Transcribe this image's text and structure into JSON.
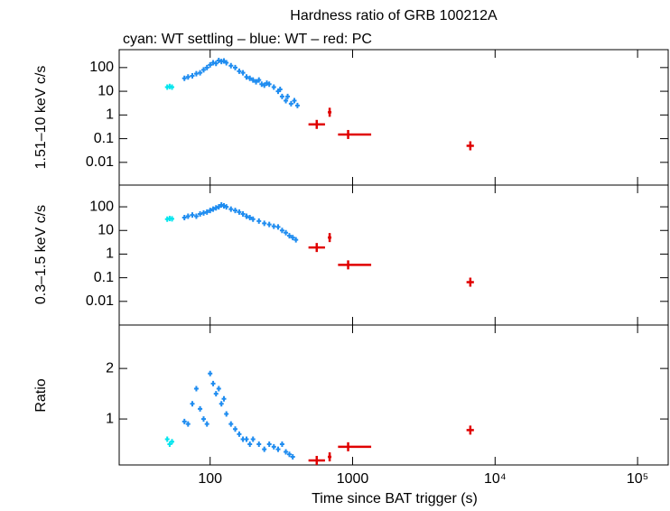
{
  "chart_data": [
    {
      "type": "scatter",
      "title": "Hardness ratio of GRB 100212A",
      "subtitle": "cyan: WT settling – blue: WT – red: PC",
      "y_label": "1.51–10 keV c/s",
      "log_x": true,
      "log_y": true,
      "xlim": [
        23,
        164000
      ],
      "ylim": [
        0.0011,
        570
      ],
      "yticks": [
        100,
        10,
        1,
        0.1,
        0.01
      ],
      "series": [
        {
          "name": "WT settling",
          "color": "#00e5ee",
          "x": [
            50,
            52,
            54
          ],
          "values": [
            15,
            16,
            15
          ]
        },
        {
          "name": "WT",
          "color": "#1e8cf0",
          "x": [
            66,
            70,
            75,
            80,
            85,
            90,
            95,
            100,
            105,
            110,
            115,
            120,
            125,
            130,
            140,
            150,
            160,
            170,
            180,
            190,
            200,
            210,
            220,
            230,
            240,
            250,
            260,
            280,
            300,
            310,
            320,
            340,
            350,
            370,
            390,
            410
          ],
          "values": [
            35,
            40,
            45,
            55,
            60,
            80,
            100,
            130,
            160,
            150,
            200,
            180,
            190,
            160,
            120,
            100,
            70,
            60,
            40,
            35,
            30,
            25,
            30,
            20,
            18,
            22,
            20,
            15,
            10,
            12,
            6,
            4,
            6,
            3,
            4,
            2.5
          ]
        },
        {
          "name": "PC",
          "color": "#e00000",
          "x": [
            560,
            690,
            930,
            6700
          ],
          "x_min": [
            490,
            670,
            790,
            6300
          ],
          "x_max": [
            640,
            710,
            1350,
            7100
          ],
          "values": [
            0.4,
            1.3,
            0.15,
            0.05
          ]
        }
      ]
    },
    {
      "type": "scatter",
      "y_label": "0.3–1.5 keV c/s",
      "log_x": true,
      "log_y": true,
      "xlim": [
        23,
        164000
      ],
      "ylim": [
        0.001,
        830
      ],
      "yticks": [
        100,
        10,
        1,
        0.1,
        0.01
      ],
      "series": [
        {
          "name": "WT settling",
          "color": "#00e5ee",
          "x": [
            50,
            52,
            54
          ],
          "values": [
            30,
            32,
            31
          ]
        },
        {
          "name": "WT",
          "color": "#1e8cf0",
          "x": [
            66,
            70,
            75,
            80,
            85,
            90,
            95,
            100,
            105,
            110,
            115,
            120,
            125,
            130,
            140,
            150,
            160,
            170,
            180,
            190,
            200,
            220,
            240,
            260,
            280,
            300,
            320,
            340,
            360,
            380,
            400
          ],
          "values": [
            35,
            40,
            45,
            40,
            50,
            55,
            60,
            70,
            80,
            90,
            100,
            120,
            110,
            100,
            80,
            70,
            60,
            50,
            40,
            35,
            30,
            25,
            20,
            18,
            15,
            14,
            10,
            8,
            6,
            5,
            4
          ]
        },
        {
          "name": "PC",
          "color": "#e00000",
          "x": [
            560,
            690,
            930,
            6700
          ],
          "x_min": [
            490,
            670,
            790,
            6300
          ],
          "x_max": [
            640,
            710,
            1350,
            7100
          ],
          "values": [
            1.9,
            5,
            0.35,
            0.065
          ]
        }
      ]
    },
    {
      "type": "scatter",
      "y_label": "Ratio",
      "x_label": "Time since BAT trigger (s)",
      "log_x": true,
      "log_y": false,
      "xlim": [
        23,
        164000
      ],
      "ylim": [
        0.09,
        2.86
      ],
      "yticks": [
        2,
        1
      ],
      "xticks": [
        100,
        1000,
        {
          "value": 10000,
          "label": "10⁴"
        },
        {
          "value": 100000,
          "label": "10⁵"
        }
      ],
      "series": [
        {
          "name": "WT settling",
          "color": "#00e5ee",
          "x": [
            50,
            52,
            54
          ],
          "values": [
            0.6,
            0.5,
            0.55
          ]
        },
        {
          "name": "WT",
          "color": "#1e8cf0",
          "x": [
            66,
            70,
            75,
            80,
            85,
            90,
            95,
            100,
            105,
            110,
            115,
            120,
            125,
            130,
            140,
            150,
            160,
            170,
            180,
            190,
            200,
            220,
            240,
            260,
            280,
            300,
            320,
            340,
            360,
            380
          ],
          "values": [
            0.95,
            0.9,
            1.3,
            1.6,
            1.2,
            1.0,
            0.9,
            1.9,
            1.7,
            1.5,
            1.6,
            1.3,
            1.4,
            1.1,
            0.9,
            0.8,
            0.7,
            0.6,
            0.6,
            0.5,
            0.6,
            0.5,
            0.4,
            0.5,
            0.45,
            0.4,
            0.5,
            0.35,
            0.3,
            0.25
          ]
        },
        {
          "name": "PC",
          "color": "#e00000",
          "x": [
            560,
            690,
            930,
            6700
          ],
          "x_min": [
            490,
            670,
            790,
            6300
          ],
          "x_max": [
            640,
            710,
            1350,
            7100
          ],
          "values": [
            0.18,
            0.25,
            0.45,
            0.78
          ]
        }
      ]
    }
  ]
}
